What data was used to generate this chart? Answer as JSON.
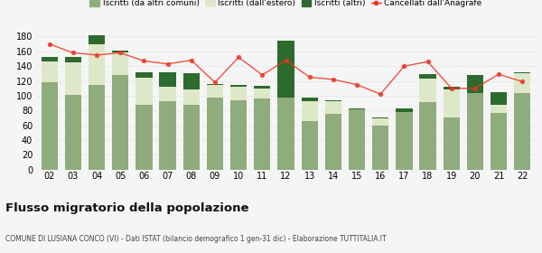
{
  "years": [
    "02",
    "03",
    "04",
    "05",
    "06",
    "07",
    "08",
    "09",
    "10",
    "11",
    "12",
    "13",
    "14",
    "15",
    "16",
    "17",
    "18",
    "19",
    "20",
    "21",
    "22"
  ],
  "iscritti_altri_comuni": [
    118,
    101,
    115,
    128,
    87,
    92,
    87,
    97,
    94,
    96,
    97,
    65,
    75,
    81,
    59,
    78,
    91,
    70,
    104,
    77,
    104
  ],
  "iscritti_estero": [
    28,
    44,
    55,
    30,
    37,
    20,
    22,
    17,
    18,
    14,
    0,
    27,
    17,
    0,
    10,
    0,
    32,
    38,
    0,
    10,
    26
  ],
  "iscritti_altri": [
    7,
    7,
    12,
    3,
    8,
    20,
    22,
    2,
    3,
    3,
    78,
    5,
    2,
    2,
    1,
    5,
    6,
    4,
    24,
    18,
    2
  ],
  "cancellati": [
    170,
    158,
    155,
    158,
    147,
    143,
    148,
    118,
    152,
    128,
    148,
    125,
    122,
    115,
    102,
    140,
    146,
    110,
    110,
    129,
    119
  ],
  "color_altri_comuni": "#8fac7c",
  "color_estero": "#dde8c8",
  "color_altri": "#2d6a2d",
  "color_cancellati": "#ee3322",
  "background": "#f5f5f5",
  "grid_color": "#cccccc",
  "legend_labels": [
    "Iscritti (da altri comuni)",
    "Iscritti (dall'estero)",
    "Iscritti (altri)",
    "Cancellati dall'Anagrafe"
  ],
  "ylim": [
    0,
    185
  ],
  "yticks": [
    0,
    20,
    40,
    60,
    80,
    100,
    120,
    140,
    160,
    180
  ],
  "title": "Flusso migratorio della popolazione",
  "subtitle": "COMUNE DI LUSIANA CONCO (VI) - Dati ISTAT (bilancio demografico 1 gen-31 dic) - Elaborazione TUTTITALIA.IT",
  "bar_width": 0.7
}
